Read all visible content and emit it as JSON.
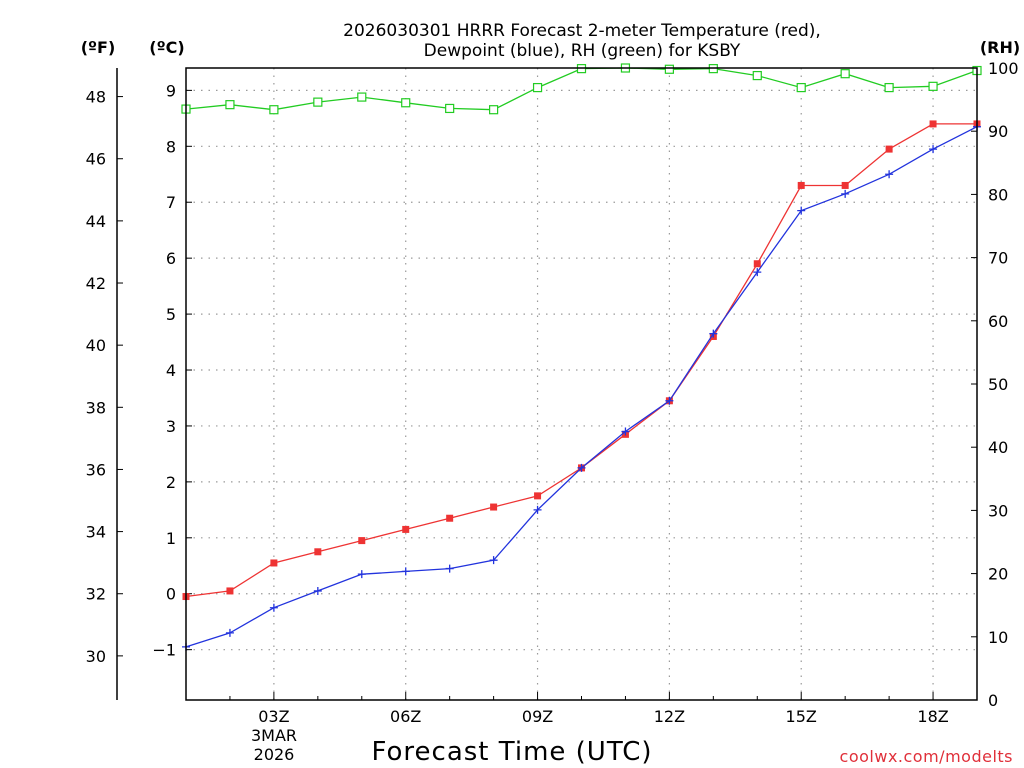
{
  "title_line1": "2026030301 HRRR Forecast 2-meter Temperature (red),",
  "title_line2": "Dewpoint (blue), RH (green) for KSBY",
  "units": {
    "fahrenheit": "(ºF)",
    "celsius": "(ºC)",
    "rh": "(RH)"
  },
  "x_title": "Forecast Time (UTC)",
  "date_line1": "3MAR",
  "date_line2": "2026",
  "credit": "coolwx.com/modelts",
  "colors": {
    "temperature": "#ee3333",
    "dewpoint": "#2233dd",
    "rh": "#22cc22",
    "grid": "#9a9a9a",
    "credit": "#e0303a"
  },
  "chart_data": {
    "type": "line",
    "x": [
      1,
      2,
      3,
      4,
      5,
      6,
      7,
      8,
      9,
      10,
      11,
      12,
      13,
      14,
      15,
      16,
      17,
      18,
      19
    ],
    "x_tick_values": [
      3,
      6,
      9,
      12,
      15,
      18
    ],
    "x_tick_labels": [
      "03Z",
      "06Z",
      "09Z",
      "12Z",
      "15Z",
      "18Z"
    ],
    "xlim": [
      1,
      19
    ],
    "celsius_axis": {
      "ylim": [
        -1.9,
        9.4
      ],
      "ticks": [
        -1,
        0,
        1,
        2,
        3,
        4,
        5,
        6,
        7,
        8,
        9
      ],
      "tick_labels": [
        "−1",
        "0",
        "1",
        "2",
        "3",
        "4",
        "5",
        "6",
        "7",
        "8",
        "9"
      ]
    },
    "fahrenheit_axis": {
      "ticks": [
        30,
        32,
        34,
        36,
        38,
        40,
        42,
        44,
        46,
        48
      ],
      "tick_labels": [
        "30",
        "32",
        "34",
        "36",
        "38",
        "40",
        "42",
        "44",
        "46",
        "48"
      ]
    },
    "rh_axis": {
      "ylim": [
        0,
        100
      ],
      "ticks": [
        0,
        10,
        20,
        30,
        40,
        50,
        60,
        70,
        80,
        90,
        100
      ],
      "tick_labels": [
        "0",
        "10",
        "20",
        "30",
        "40",
        "50",
        "60",
        "70",
        "80",
        "90",
        "100"
      ]
    },
    "series": [
      {
        "name": "Temperature",
        "unit": "C",
        "axis": "celsius",
        "marker": "filled-square",
        "values": [
          -0.05,
          0.05,
          0.55,
          0.75,
          0.95,
          1.15,
          1.35,
          1.55,
          1.75,
          2.25,
          2.85,
          3.45,
          4.6,
          5.9,
          7.3,
          7.3,
          7.95,
          8.4,
          8.4
        ]
      },
      {
        "name": "Dewpoint",
        "unit": "C",
        "axis": "celsius",
        "marker": "plus",
        "values": [
          -0.95,
          -0.7,
          -0.25,
          0.05,
          0.35,
          0.4,
          0.45,
          0.6,
          1.5,
          2.25,
          2.9,
          3.45,
          4.65,
          5.75,
          6.85,
          7.15,
          7.5,
          7.95,
          8.35
        ]
      },
      {
        "name": "RH",
        "unit": "%",
        "axis": "rh",
        "marker": "open-square",
        "values": [
          93.5,
          94.2,
          93.4,
          94.6,
          95.4,
          94.5,
          93.6,
          93.4,
          96.9,
          99.9,
          100,
          99.8,
          99.9,
          98.8,
          96.9,
          99.1,
          96.9,
          97.1,
          99.6
        ]
      }
    ]
  }
}
